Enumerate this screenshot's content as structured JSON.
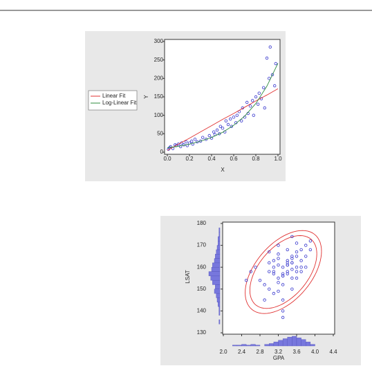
{
  "chart_data": [
    {
      "type": "scatter",
      "xlabel": "X",
      "ylabel": "Y",
      "xlim": [
        0,
        1
      ],
      "xticks": [
        {
          "value": 0,
          "label": "0.0"
        },
        0.2,
        0.4,
        0.6,
        0.8,
        {
          "value": 1,
          "label": "1.0"
        }
      ],
      "ylim": [
        0,
        300
      ],
      "yticks": [
        0,
        50,
        100,
        150,
        200,
        250,
        300
      ],
      "color": "#3333cc",
      "x": [
        0.01,
        0.02,
        0.03,
        0.05,
        0.07,
        0.08,
        0.1,
        0.12,
        0.13,
        0.15,
        0.17,
        0.18,
        0.2,
        0.22,
        0.23,
        0.25,
        0.27,
        0.3,
        0.32,
        0.35,
        0.38,
        0.4,
        0.42,
        0.43,
        0.45,
        0.47,
        0.48,
        0.5,
        0.52,
        0.53,
        0.55,
        0.57,
        0.58,
        0.6,
        0.62,
        0.63,
        0.65,
        0.67,
        0.68,
        0.7,
        0.72,
        0.73,
        0.75,
        0.77,
        0.78,
        0.8,
        0.82,
        0.83,
        0.85,
        0.87,
        0.88,
        0.9,
        0.92,
        0.93,
        0.95,
        0.97,
        0.98
      ],
      "values": [
        8,
        12,
        15,
        10,
        20,
        18,
        22,
        15,
        25,
        20,
        28,
        18,
        25,
        30,
        22,
        35,
        28,
        30,
        40,
        35,
        45,
        38,
        55,
        48,
        60,
        50,
        70,
        65,
        55,
        85,
        75,
        90,
        70,
        95,
        80,
        100,
        110,
        85,
        120,
        95,
        135,
        105,
        125,
        140,
        100,
        150,
        130,
        160,
        145,
        175,
        120,
        255,
        200,
        285,
        210,
        180,
        240
      ],
      "series": [
        {
          "name": "Linear Fit",
          "color": "#e03030",
          "x": [
            0,
            0.1,
            0.2,
            0.3,
            0.4,
            0.5,
            0.6,
            0.7,
            0.8,
            0.9,
            1
          ],
          "values": [
            5,
            22,
            38,
            55,
            72,
            89,
            105,
            122,
            139,
            155,
            172
          ]
        },
        {
          "name": "Log-Linear Fit",
          "color": "#2e8b3e",
          "x": [
            0,
            0.1,
            0.2,
            0.3,
            0.4,
            0.5,
            0.6,
            0.7,
            0.8,
            0.9,
            1
          ],
          "values": [
            12,
            16,
            22,
            30,
            40,
            54,
            73,
            98,
            132,
            179,
            241
          ]
        }
      ]
    },
    {
      "type": "scatter",
      "xlabel": "GPA",
      "ylabel": "LSAT",
      "xlim": [
        2,
        4.4
      ],
      "xticks": [
        {
          "value": 2,
          "label": "2.0"
        },
        2.4,
        2.8,
        3.2,
        3.6,
        {
          "value": 4,
          "label": "4.0"
        },
        4.4
      ],
      "ylim": [
        130,
        180
      ],
      "yticks": [
        130,
        140,
        150,
        160,
        170,
        180
      ],
      "color": "#3333cc",
      "x": [
        3.1,
        3.3,
        3.5,
        3.2,
        3.4,
        3.6,
        3.0,
        3.3,
        3.5,
        3.7,
        2.9,
        3.2,
        3.4,
        3.6,
        3.8,
        3.1,
        3.3,
        3.5,
        2.8,
        3.0,
        3.2,
        3.4,
        3.6,
        3.9,
        3.3,
        3.5,
        3.7,
        3.1,
        3.2,
        3.4,
        2.6,
        2.7,
        3.0,
        3.3,
        3.5,
        3.6,
        3.8,
        3.2,
        3.4,
        3.1,
        2.9,
        3.5,
        3.7,
        3.3,
        3.6,
        3.4,
        3.2,
        3.0,
        3.8,
        3.5,
        2.5,
        3.6,
        3.3,
        3.4,
        3.7,
        3.1,
        3.9,
        3.2,
        3.5,
        3.3
      ],
      "values": [
        158,
        160,
        162,
        155,
        163,
        165,
        150,
        157,
        159,
        168,
        152,
        161,
        158,
        160,
        170,
        148,
        156,
        164,
        154,
        158,
        166,
        162,
        167,
        172,
        145,
        155,
        163,
        160,
        153,
        157,
        158,
        160,
        167,
        140,
        150,
        158,
        165,
        170,
        161,
        157,
        145,
        162,
        160,
        152,
        155,
        168,
        164,
        162,
        160,
        174,
        154,
        171,
        137,
        161,
        158,
        163,
        168,
        149,
        165,
        156
      ],
      "ellipse": {
        "color": "#e03030",
        "center": [
          3.31,
          157.8
        ],
        "sd": [
          0.34,
          7.75
        ],
        "corr": 0.5,
        "scales": [
          2.15,
          2.45
        ]
      },
      "x_hist": {
        "color": "#7777dd",
        "bins": [
          2.0,
          2.1,
          2.2,
          2.3,
          2.4,
          2.5,
          2.6,
          2.7,
          2.8,
          2.9,
          3.0,
          3.1,
          3.2,
          3.3,
          3.4,
          3.5,
          3.6,
          3.7,
          3.8,
          3.9,
          4.0
        ],
        "counts": [
          0,
          0,
          1,
          1,
          2,
          1,
          2,
          1,
          0,
          2,
          3,
          5,
          7,
          9,
          11,
          12,
          10,
          8,
          5,
          2
        ]
      },
      "y_hist": {
        "color": "#7777dd",
        "bins": [
          134,
          136,
          138,
          140,
          142,
          144,
          146,
          148,
          150,
          152,
          154,
          156,
          158,
          160,
          162,
          164,
          166,
          168,
          170,
          172,
          174,
          176,
          178
        ],
        "counts": [
          1,
          0,
          1,
          1,
          2,
          3,
          4,
          6,
          5,
          8,
          10,
          12,
          9,
          8,
          6,
          5,
          4,
          3,
          2,
          2,
          1,
          1
        ]
      }
    }
  ]
}
